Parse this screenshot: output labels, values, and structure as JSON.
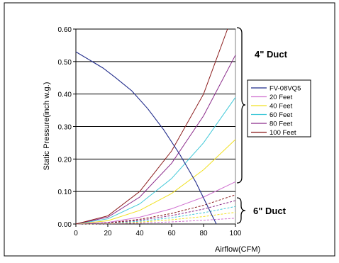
{
  "chart_data": {
    "type": "line",
    "xlabel": "Airflow(CFM)",
    "ylabel": "Static Pressure(inch w.g.)",
    "xlim": [
      0,
      100
    ],
    "ylim": [
      0,
      0.6
    ],
    "x_ticks": [
      "0",
      "20",
      "40",
      "60",
      "80",
      "100"
    ],
    "y_ticks": [
      "0.00",
      "0.10",
      "0.20",
      "0.30",
      "0.40",
      "0.50",
      "0.60"
    ],
    "grid": "horizontal",
    "legend_position": "right",
    "annotations": [
      "4\" Duct",
      "6\" Duct"
    ],
    "fan_curve": {
      "name": "FV-08VQ5",
      "color": "#1f2a8a",
      "x": [
        0,
        17,
        25,
        35,
        45,
        55,
        65,
        75,
        80,
        84,
        88
      ],
      "y": [
        0.53,
        0.48,
        0.45,
        0.41,
        0.355,
        0.29,
        0.215,
        0.13,
        0.08,
        0.04,
        0.0
      ]
    },
    "duct_4in": [
      {
        "name": "20 Feet",
        "color": "#d070d0",
        "x": [
          0,
          20,
          40,
          60,
          80,
          100
        ],
        "y": [
          0,
          0.005,
          0.021,
          0.047,
          0.083,
          0.13
        ]
      },
      {
        "name": "40 Feet",
        "color": "#f0e020",
        "x": [
          0,
          20,
          40,
          60,
          80,
          100
        ],
        "y": [
          0,
          0.01,
          0.042,
          0.094,
          0.167,
          0.26
        ]
      },
      {
        "name": "60 Feet",
        "color": "#40c8d8",
        "x": [
          0,
          20,
          40,
          60,
          80,
          100
        ],
        "y": [
          0,
          0.016,
          0.062,
          0.14,
          0.25,
          0.39
        ]
      },
      {
        "name": "80 Feet",
        "color": "#8a2a8a",
        "x": [
          0,
          20,
          40,
          60,
          80,
          100
        ],
        "y": [
          0,
          0.021,
          0.083,
          0.187,
          0.333,
          0.52
        ]
      },
      {
        "name": "100 Feet",
        "color": "#8a1a1a",
        "x": [
          0,
          20,
          40,
          60,
          80,
          95
        ],
        "y": [
          0,
          0.025,
          0.1,
          0.225,
          0.4,
          0.6
        ]
      }
    ],
    "duct_6in": [
      {
        "name": "20 Feet",
        "color": "#d070d0",
        "x": [
          0,
          20,
          40,
          60,
          80,
          100
        ],
        "y": [
          0,
          0.0007,
          0.0029,
          0.0065,
          0.0115,
          0.018
        ]
      },
      {
        "name": "40 Feet",
        "color": "#f0e020",
        "x": [
          0,
          20,
          40,
          60,
          80,
          100
        ],
        "y": [
          0,
          0.0014,
          0.0058,
          0.013,
          0.023,
          0.036
        ]
      },
      {
        "name": "60 Feet",
        "color": "#40c8d8",
        "x": [
          0,
          20,
          40,
          60,
          80,
          100
        ],
        "y": [
          0,
          0.0022,
          0.0086,
          0.0194,
          0.0346,
          0.054
        ]
      },
      {
        "name": "80 Feet",
        "color": "#8a2a8a",
        "x": [
          0,
          20,
          40,
          60,
          80,
          100
        ],
        "y": [
          0,
          0.0029,
          0.0115,
          0.0259,
          0.0461,
          0.072
        ]
      },
      {
        "name": "100 Feet",
        "color": "#8a1a1a",
        "x": [
          0,
          20,
          40,
          60,
          80,
          100
        ],
        "y": [
          0,
          0.0036,
          0.0144,
          0.0324,
          0.0576,
          0.09
        ]
      }
    ]
  }
}
